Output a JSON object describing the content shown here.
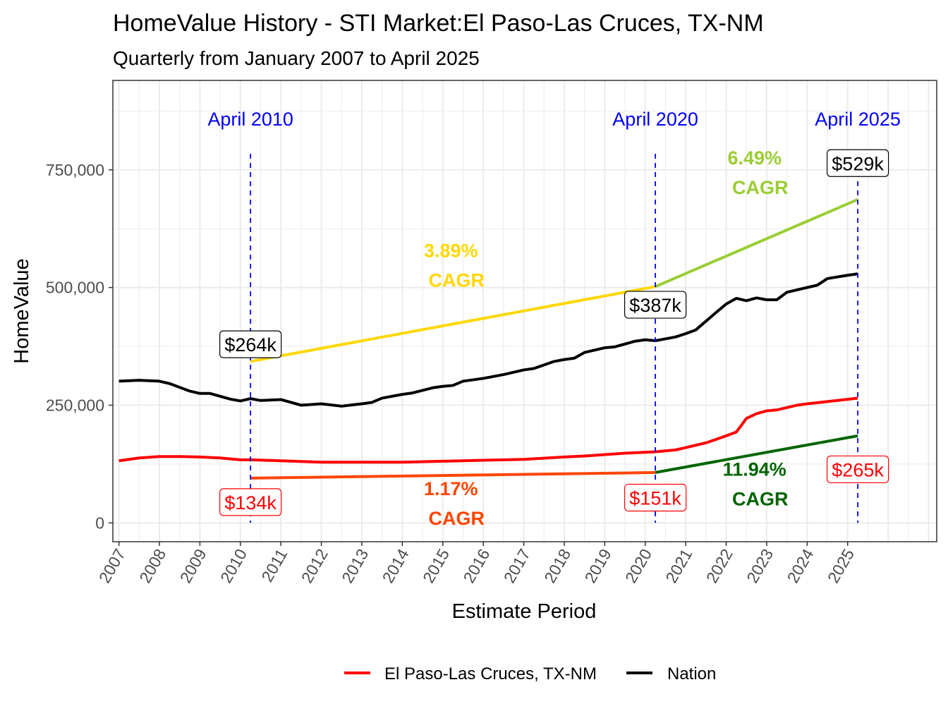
{
  "chart_data": {
    "type": "line",
    "title": "HomeValue History - STI Market:El Paso-Las Cruces, TX-NM",
    "subtitle": "Quarterly from January 2007 to April 2025",
    "xlabel": "Estimate Period",
    "ylabel": "HomeValue",
    "xlim": [
      2006.85,
      2027.2
    ],
    "ylim": [
      -40000,
      940000
    ],
    "grid": true,
    "legend_position": "bottom",
    "x_ticks": [
      "2007",
      "2008",
      "2009",
      "2010",
      "2011",
      "2012",
      "2013",
      "2014",
      "2015",
      "2016",
      "2017",
      "2018",
      "2019",
      "2020",
      "2021",
      "2022",
      "2023",
      "2024",
      "2025"
    ],
    "y_ticks": [
      {
        "value": 0,
        "label": "0"
      },
      {
        "value": 250000,
        "label": "250,000"
      },
      {
        "value": 500000,
        "label": "500,000"
      },
      {
        "value": 750000,
        "label": "750,000"
      }
    ],
    "series": [
      {
        "name": "El Paso-Las Cruces, TX-NM",
        "color": "#ff0000",
        "points": [
          [
            "2007-01",
            132000
          ],
          [
            "2007-07",
            138000
          ],
          [
            "2008-01",
            141000
          ],
          [
            "2008-07",
            141000
          ],
          [
            "2009-01",
            140000
          ],
          [
            "2009-07",
            138000
          ],
          [
            "2010-01",
            134000
          ],
          [
            "2010-04",
            134000
          ],
          [
            "2011-01",
            132000
          ],
          [
            "2012-01",
            129000
          ],
          [
            "2013-01",
            129000
          ],
          [
            "2014-01",
            129000
          ],
          [
            "2015-01",
            131000
          ],
          [
            "2016-01",
            133000
          ],
          [
            "2017-01",
            135000
          ],
          [
            "2018-01",
            140000
          ],
          [
            "2018-07",
            142000
          ],
          [
            "2019-01",
            145000
          ],
          [
            "2019-07",
            148000
          ],
          [
            "2020-04",
            151000
          ],
          [
            "2020-10",
            155000
          ],
          [
            "2021-01",
            160000
          ],
          [
            "2021-07",
            170000
          ],
          [
            "2022-01",
            185000
          ],
          [
            "2022-04",
            193000
          ],
          [
            "2022-07",
            222000
          ],
          [
            "2022-10",
            232000
          ],
          [
            "2023-01",
            238000
          ],
          [
            "2023-04",
            240000
          ],
          [
            "2023-10",
            250000
          ],
          [
            "2024-01",
            253000
          ],
          [
            "2025-04",
            265000
          ]
        ]
      },
      {
        "name": "Nation",
        "color": "#000000",
        "points": [
          [
            "2007-01",
            301000
          ],
          [
            "2007-07",
            303000
          ],
          [
            "2008-01",
            301000
          ],
          [
            "2008-04",
            296000
          ],
          [
            "2008-10",
            280000
          ],
          [
            "2009-01",
            275000
          ],
          [
            "2009-04",
            275000
          ],
          [
            "2009-10",
            263000
          ],
          [
            "2010-01",
            259000
          ],
          [
            "2010-04",
            264000
          ],
          [
            "2010-07",
            260000
          ],
          [
            "2011-01",
            262000
          ],
          [
            "2011-07",
            250000
          ],
          [
            "2012-01",
            253000
          ],
          [
            "2012-07",
            248000
          ],
          [
            "2013-01",
            253000
          ],
          [
            "2013-04",
            256000
          ],
          [
            "2013-07",
            265000
          ],
          [
            "2014-01",
            273000
          ],
          [
            "2014-04",
            276000
          ],
          [
            "2014-10",
            287000
          ],
          [
            "2015-01",
            290000
          ],
          [
            "2015-04",
            292000
          ],
          [
            "2015-07",
            301000
          ],
          [
            "2016-01",
            307000
          ],
          [
            "2016-07",
            315000
          ],
          [
            "2017-01",
            325000
          ],
          [
            "2017-04",
            328000
          ],
          [
            "2017-10",
            343000
          ],
          [
            "2018-01",
            347000
          ],
          [
            "2018-04",
            350000
          ],
          [
            "2018-07",
            362000
          ],
          [
            "2019-01",
            372000
          ],
          [
            "2019-04",
            374000
          ],
          [
            "2019-10",
            386000
          ],
          [
            "2020-01",
            389000
          ],
          [
            "2020-04",
            387000
          ],
          [
            "2020-10",
            395000
          ],
          [
            "2021-01",
            402000
          ],
          [
            "2021-04",
            410000
          ],
          [
            "2021-10",
            447000
          ],
          [
            "2022-01",
            465000
          ],
          [
            "2022-04",
            477000
          ],
          [
            "2022-07",
            472000
          ],
          [
            "2022-10",
            478000
          ],
          [
            "2023-01",
            474000
          ],
          [
            "2023-04",
            474000
          ],
          [
            "2023-07",
            490000
          ],
          [
            "2024-01",
            500000
          ],
          [
            "2024-04",
            505000
          ],
          [
            "2024-07",
            519000
          ],
          [
            "2025-01",
            526000
          ],
          [
            "2025-04",
            529000
          ]
        ]
      }
    ],
    "cagr_segments": [
      {
        "from": [
          "2010-04",
          343000
        ],
        "to": [
          "2020-04",
          502000
        ],
        "color": "#ffd700",
        "rate": "3.89%",
        "label": "CAGR",
        "label_at": [
          2015.2,
          565000
        ]
      },
      {
        "from": [
          "2020-04",
          502000
        ],
        "to": [
          "2025-04",
          687000
        ],
        "color": "#9acd32",
        "rate": "6.49%",
        "label": "CAGR",
        "label_at": [
          2022.7,
          762000
        ]
      },
      {
        "from": [
          "2010-04",
          95000
        ],
        "to": [
          "2020-04",
          107000
        ],
        "color": "#ff4500",
        "rate": "1.17%",
        "label": "CAGR",
        "label_at": [
          2015.2,
          59000
        ]
      },
      {
        "from": [
          "2020-04",
          107000
        ],
        "to": [
          "2025-04",
          185000
        ],
        "color": "#006400",
        "rate": "11.94%",
        "label": "CAGR",
        "label_at": [
          2022.7,
          100000
        ]
      }
    ],
    "markers": [
      {
        "date": "2010-04",
        "label": "April 2010",
        "nation_label": "$264k",
        "nation_value": 264000,
        "metro_label": "$134k",
        "metro_value": 134000
      },
      {
        "date": "2020-04",
        "label": "April 2020",
        "nation_label": "$387k",
        "nation_value": 387000,
        "metro_label": "$151k",
        "metro_value": 151000
      },
      {
        "date": "2025-04",
        "label": "April 2025",
        "nation_label": "$529k",
        "nation_value": 529000,
        "metro_label": "$265k",
        "metro_value": 265000
      }
    ],
    "marker_color": "#0000ff"
  }
}
